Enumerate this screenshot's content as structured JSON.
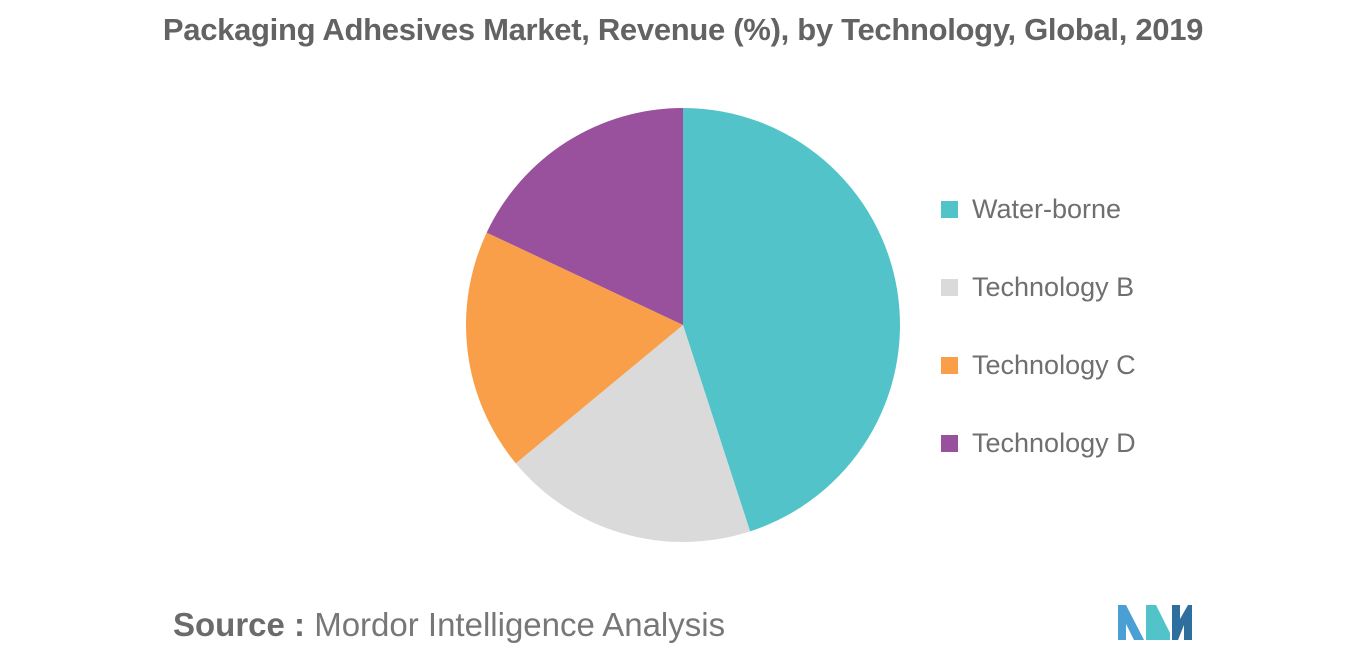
{
  "chart_data": {
    "type": "pie",
    "title": "Packaging Adhesives Market, Revenue (%), by Technology, Global, 2019",
    "slices": [
      {
        "label": "Water-borne",
        "value": 45,
        "color": "#52c4c9"
      },
      {
        "label": "Technology B",
        "value": 19,
        "color": "#dadada"
      },
      {
        "label": "Technology C",
        "value": 18,
        "color": "#fa9f49"
      },
      {
        "label": "Technology D",
        "value": 18,
        "color": "#9a519d"
      }
    ],
    "start": "12 o'clock, clockwise",
    "legend_position": "right"
  },
  "source": {
    "label": "Source :",
    "text": "Mordor Intelligence Analysis"
  },
  "logo": {
    "icon": "mordor-intelligence-logo",
    "colors": [
      "#4a9fd4",
      "#52c4c9",
      "#2f6f9e"
    ]
  }
}
